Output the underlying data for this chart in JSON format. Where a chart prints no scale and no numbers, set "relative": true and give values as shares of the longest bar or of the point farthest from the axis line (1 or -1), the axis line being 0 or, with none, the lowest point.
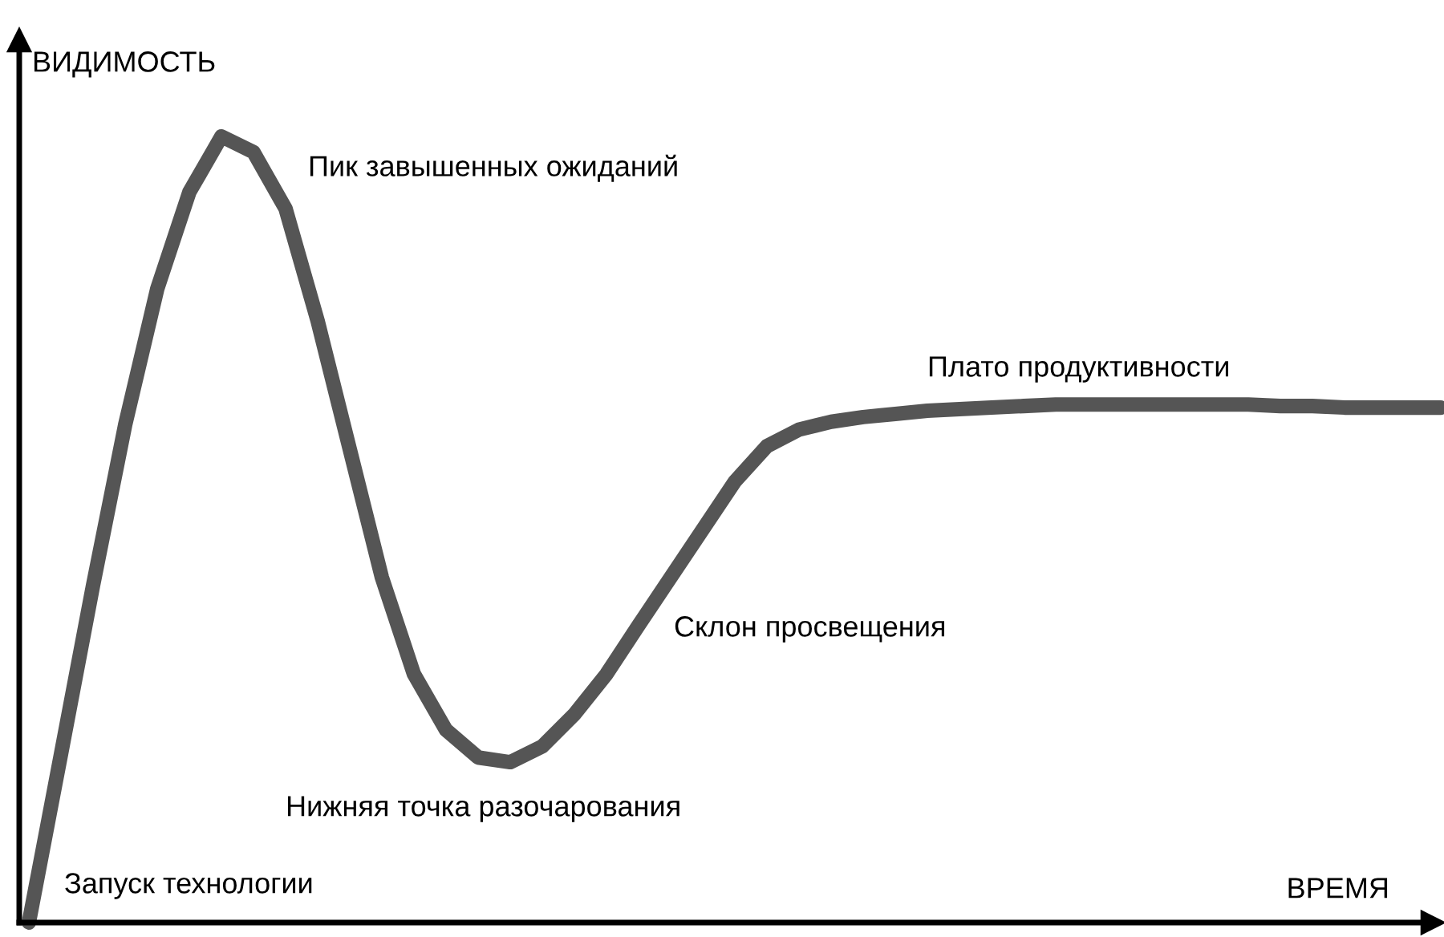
{
  "chart_data": {
    "type": "line",
    "relative": true,
    "xlabel": "ВРЕМЯ",
    "ylabel": "ВИДИМОСТЬ",
    "categories": [
      null,
      null,
      null,
      null,
      null,
      null,
      null,
      null,
      null,
      null,
      null,
      null,
      null,
      null,
      null,
      null,
      null,
      null,
      null,
      null,
      null,
      null,
      null,
      null,
      null,
      null,
      null,
      null,
      null,
      null,
      null,
      null,
      null,
      null,
      null,
      null,
      null,
      null,
      null,
      null,
      null,
      null,
      null,
      null,
      null
    ],
    "series": [
      {
        "color": "#555555",
        "values": [
          0,
          0.214,
          0.429,
          0.633,
          0.806,
          0.929,
          1.0,
          0.98,
          0.908,
          0.765,
          0.602,
          0.439,
          0.316,
          0.245,
          0.21,
          0.204,
          0.224,
          0.265,
          0.316,
          0.378,
          0.439,
          0.5,
          0.561,
          0.606,
          0.627,
          0.637,
          0.643,
          0.647,
          0.651,
          0.653,
          0.655,
          0.657,
          0.659,
          0.659,
          0.659,
          0.659,
          0.659,
          0.659,
          0.659,
          0.657,
          0.657,
          0.655,
          0.655,
          0.655,
          0.655
        ]
      }
    ],
    "annotations": [
      "Пик завышенных ожиданий",
      "Плато продуктивности",
      "Склон просвещения",
      "Нижняя точка разочарования",
      "Запуск технологии"
    ],
    "marker": "none",
    "line_style": "solid"
  }
}
